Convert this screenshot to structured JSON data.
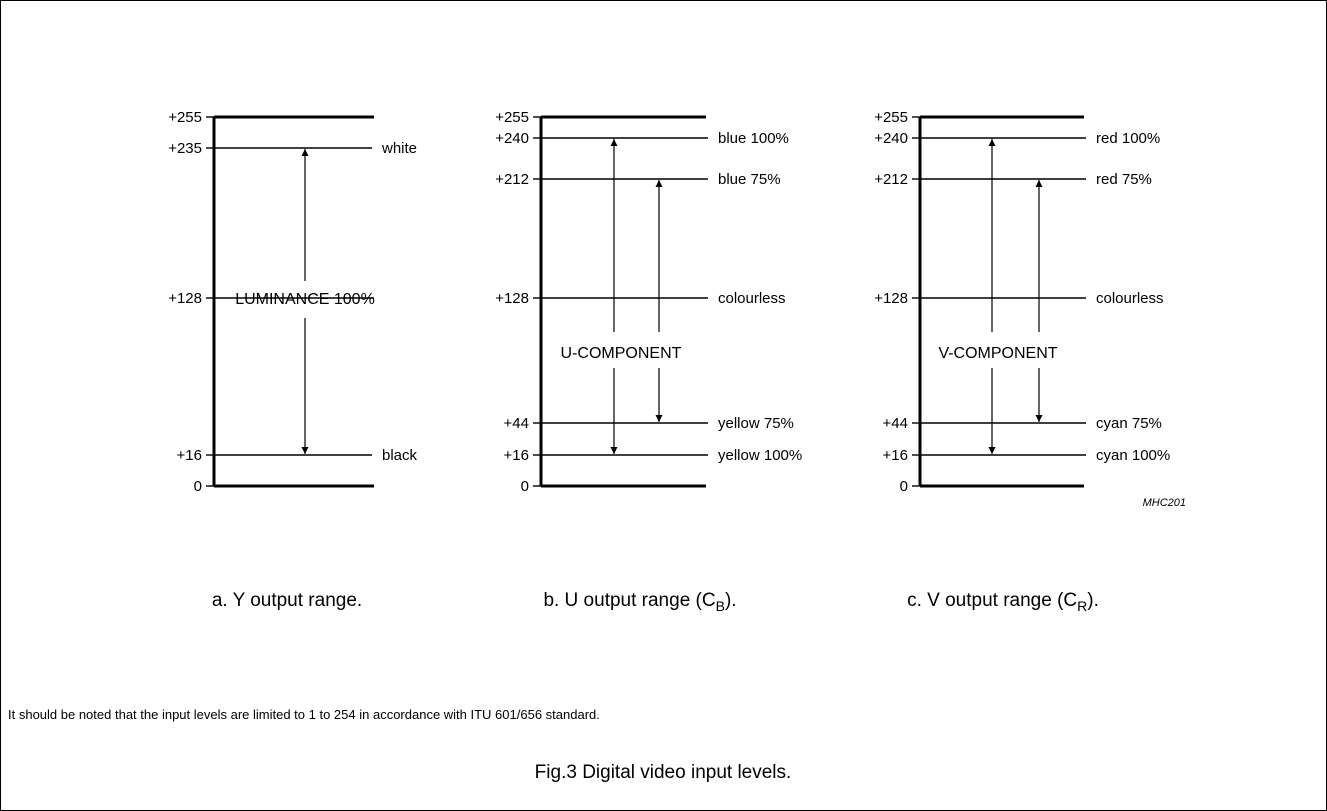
{
  "figure_code": "MHC201",
  "panels": [
    {
      "id": "y",
      "caption": {
        "prefix": "a.  Y output range.",
        "sub": "",
        "suffix": ""
      },
      "levels": [
        {
          "value": 255,
          "tick": "+255",
          "label": ""
        },
        {
          "value": 235,
          "tick": "+235",
          "label": "white"
        },
        {
          "value": 128,
          "tick": "+128",
          "label": ""
        },
        {
          "value": 16,
          "tick": "+16",
          "label": "black"
        },
        {
          "value": 0,
          "tick": "0",
          "label": ""
        }
      ],
      "component_label": "LUMINANCE 100%",
      "arrows": [
        {
          "from": 235,
          "to": 16
        }
      ]
    },
    {
      "id": "u",
      "caption": {
        "prefix": "b.  U output range (C",
        "sub": "B",
        "suffix": ")."
      },
      "levels": [
        {
          "value": 255,
          "tick": "+255",
          "label": ""
        },
        {
          "value": 240,
          "tick": "+240",
          "label": "blue 100%"
        },
        {
          "value": 212,
          "tick": "+212",
          "label": "blue 75%"
        },
        {
          "value": 128,
          "tick": "+128",
          "label": "colourless"
        },
        {
          "value": 44,
          "tick": "+44",
          "label": "yellow 75%"
        },
        {
          "value": 16,
          "tick": "+16",
          "label": "yellow 100%"
        },
        {
          "value": 0,
          "tick": "0",
          "label": ""
        }
      ],
      "component_label": "U-COMPONENT",
      "arrows": [
        {
          "from": 240,
          "to": 16
        },
        {
          "from": 212,
          "to": 44
        }
      ]
    },
    {
      "id": "v",
      "caption": {
        "prefix": "c.  V output range (C",
        "sub": "R",
        "suffix": ")."
      },
      "levels": [
        {
          "value": 255,
          "tick": "+255",
          "label": ""
        },
        {
          "value": 240,
          "tick": "+240",
          "label": "red 100%"
        },
        {
          "value": 212,
          "tick": "+212",
          "label": "red 75%"
        },
        {
          "value": 128,
          "tick": "+128",
          "label": "colourless"
        },
        {
          "value": 44,
          "tick": "+44",
          "label": "cyan 75%"
        },
        {
          "value": 16,
          "tick": "+16",
          "label": "cyan 100%"
        },
        {
          "value": 0,
          "tick": "0",
          "label": ""
        }
      ],
      "component_label": "V-COMPONENT",
      "arrows": [
        {
          "from": 240,
          "to": 16
        },
        {
          "from": 212,
          "to": 44
        }
      ]
    }
  ],
  "note": "It should be noted that the input levels are limited to 1 to 254 in accordance with ITU 601/656 standard.",
  "figure_title": "Fig.3  Digital video input levels."
}
